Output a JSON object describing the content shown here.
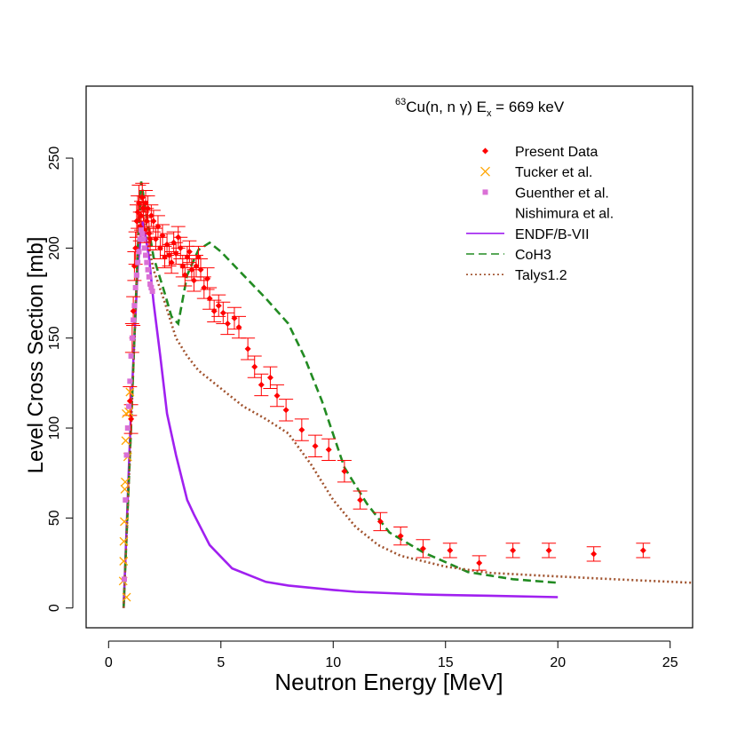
{
  "chart_data": {
    "type": "scatter",
    "title": {
      "superscript": "63",
      "main": "Cu(n, n γ) E",
      "subscript": "x",
      "suffix": " = 669 keV"
    },
    "xlabel": "Neutron Energy [MeV]",
    "ylabel": "Level Cross Section [mb]",
    "xlim": [
      -1.0,
      26.0
    ],
    "ylim": [
      -11.0,
      290.0
    ],
    "xticks": [
      0,
      5,
      10,
      15,
      20,
      25
    ],
    "yticks": [
      0,
      50,
      100,
      150,
      200,
      250
    ],
    "legend_position": "top-right",
    "grid": false,
    "colors": {
      "present": "#ff0000",
      "tucker": "#ffa500",
      "guenther": "#da70d6",
      "endf": "#a020f0",
      "coh3": "#228b22",
      "talys": "#a0522d"
    },
    "series": [
      {
        "name": "Present Data",
        "kind": "points",
        "marker": "diamond",
        "color_key": "present",
        "points": [
          [
            0.95,
            115,
            8
          ],
          [
            1.0,
            105,
            8
          ],
          [
            1.05,
            150,
            8
          ],
          [
            1.1,
            165,
            8
          ],
          [
            1.15,
            190,
            8
          ],
          [
            1.2,
            200,
            9
          ],
          [
            1.25,
            215,
            9
          ],
          [
            1.3,
            220,
            9
          ],
          [
            1.35,
            225,
            10
          ],
          [
            1.4,
            212,
            8
          ],
          [
            1.45,
            218,
            8
          ],
          [
            1.5,
            228,
            8
          ],
          [
            1.55,
            222,
            7
          ],
          [
            1.6,
            210,
            7
          ],
          [
            1.65,
            225,
            7
          ],
          [
            1.7,
            215,
            7
          ],
          [
            1.75,
            222,
            7
          ],
          [
            1.8,
            208,
            7
          ],
          [
            1.85,
            205,
            6
          ],
          [
            1.9,
            218,
            6
          ],
          [
            2.0,
            215,
            6
          ],
          [
            2.1,
            205,
            6
          ],
          [
            2.2,
            212,
            6
          ],
          [
            2.3,
            200,
            6
          ],
          [
            2.4,
            207,
            6
          ],
          [
            2.5,
            195,
            6
          ],
          [
            2.6,
            202,
            6
          ],
          [
            2.7,
            196,
            6
          ],
          [
            2.8,
            192,
            6
          ],
          [
            2.9,
            203,
            6
          ],
          [
            3.0,
            197,
            6
          ],
          [
            3.1,
            206,
            6
          ],
          [
            3.2,
            200,
            6
          ],
          [
            3.3,
            190,
            6
          ],
          [
            3.4,
            185,
            6
          ],
          [
            3.5,
            195,
            6
          ],
          [
            3.6,
            198,
            6
          ],
          [
            3.7,
            188,
            6
          ],
          [
            3.8,
            182,
            6
          ],
          [
            3.9,
            190,
            6
          ],
          [
            4.0,
            195,
            6
          ],
          [
            4.1,
            188,
            6
          ],
          [
            4.25,
            178,
            6
          ],
          [
            4.4,
            183,
            6
          ],
          [
            4.5,
            172,
            6
          ],
          [
            4.7,
            165,
            6
          ],
          [
            4.9,
            168,
            6
          ],
          [
            5.1,
            164,
            6
          ],
          [
            5.3,
            158,
            6
          ],
          [
            5.6,
            161,
            6
          ],
          [
            5.8,
            156,
            6
          ],
          [
            6.2,
            144,
            6
          ],
          [
            6.5,
            134,
            6
          ],
          [
            6.8,
            124,
            6
          ],
          [
            7.2,
            128,
            6
          ],
          [
            7.5,
            118,
            6
          ],
          [
            7.9,
            110,
            6
          ],
          [
            8.6,
            99,
            6
          ],
          [
            9.2,
            90,
            6
          ],
          [
            9.8,
            88,
            6
          ],
          [
            10.5,
            76,
            6
          ],
          [
            11.2,
            60,
            5
          ],
          [
            12.1,
            48,
            5
          ],
          [
            13.0,
            40,
            5
          ],
          [
            14.0,
            33,
            5
          ],
          [
            15.2,
            32,
            4
          ],
          [
            16.5,
            25,
            4
          ],
          [
            18.0,
            32,
            4
          ],
          [
            19.6,
            32,
            4
          ],
          [
            21.6,
            30,
            4
          ],
          [
            23.8,
            32,
            4
          ]
        ]
      },
      {
        "name": "Tucker et al.",
        "kind": "points",
        "marker": "x",
        "color_key": "tucker",
        "points": [
          [
            0.65,
            15
          ],
          [
            0.67,
            26
          ],
          [
            0.68,
            37
          ],
          [
            0.7,
            48
          ],
          [
            0.72,
            66
          ],
          [
            0.74,
            70
          ],
          [
            0.76,
            93
          ],
          [
            0.78,
            108
          ],
          [
            0.8,
            6
          ],
          [
            0.85,
            84
          ],
          [
            0.9,
            109
          ],
          [
            0.95,
            120
          ]
        ]
      },
      {
        "name": "Guenther et al.",
        "kind": "points",
        "marker": "square",
        "color_key": "guenther",
        "points": [
          [
            0.7,
            16
          ],
          [
            0.75,
            60
          ],
          [
            0.8,
            85
          ],
          [
            0.85,
            100
          ],
          [
            0.9,
            112
          ],
          [
            0.95,
            126
          ],
          [
            1.0,
            140
          ],
          [
            1.05,
            150
          ],
          [
            1.1,
            160
          ],
          [
            1.15,
            168
          ],
          [
            1.2,
            178
          ],
          [
            1.25,
            185
          ],
          [
            1.3,
            192
          ],
          [
            1.35,
            198
          ],
          [
            1.4,
            205
          ],
          [
            1.45,
            210
          ],
          [
            1.5,
            208
          ],
          [
            1.55,
            205
          ],
          [
            1.6,
            200
          ],
          [
            1.65,
            196
          ],
          [
            1.7,
            192
          ],
          [
            1.75,
            188
          ],
          [
            1.8,
            184
          ],
          [
            1.85,
            180
          ],
          [
            1.9,
            178
          ],
          [
            1.95,
            176
          ]
        ]
      },
      {
        "name": "Nishimura et al.",
        "kind": "points",
        "marker": "none",
        "color_key": "tucker",
        "points": []
      },
      {
        "name": "ENDF/B-VII",
        "kind": "line",
        "dash": "solid",
        "color_key": "endf",
        "points": [
          [
            0.67,
            0
          ],
          [
            1.0,
            110
          ],
          [
            1.3,
            190
          ],
          [
            1.5,
            215
          ],
          [
            1.6,
            210
          ],
          [
            1.8,
            195
          ],
          [
            2.0,
            170
          ],
          [
            2.3,
            140
          ],
          [
            2.6,
            108
          ],
          [
            3.0,
            85
          ],
          [
            3.5,
            60
          ],
          [
            3.8,
            52
          ],
          [
            4.5,
            35
          ],
          [
            5.5,
            22
          ],
          [
            7.0,
            14.5
          ],
          [
            8.0,
            12.5
          ],
          [
            10.0,
            10
          ],
          [
            11.0,
            9
          ],
          [
            13.0,
            8
          ],
          [
            14.0,
            7.5
          ],
          [
            15.0,
            7.2
          ],
          [
            17.0,
            6.8
          ],
          [
            20.0,
            6
          ]
        ]
      },
      {
        "name": "CoH3",
        "kind": "line",
        "dash": "dashed",
        "color_key": "coh3",
        "points": [
          [
            0.67,
            0
          ],
          [
            1.0,
            100
          ],
          [
            1.3,
            200
          ],
          [
            1.45,
            237
          ],
          [
            1.6,
            225
          ],
          [
            1.8,
            210
          ],
          [
            2.0,
            195
          ],
          [
            2.5,
            175
          ],
          [
            2.8,
            162
          ],
          [
            3.1,
            158
          ],
          [
            3.5,
            185
          ],
          [
            4.0,
            199
          ],
          [
            4.5,
            203
          ],
          [
            5.0,
            198
          ],
          [
            6.0,
            185
          ],
          [
            7.0,
            172
          ],
          [
            8.0,
            158
          ],
          [
            8.7,
            140
          ],
          [
            9.5,
            115
          ],
          [
            10.5,
            78
          ],
          [
            11.5,
            58
          ],
          [
            12.5,
            42
          ],
          [
            14.0,
            31
          ],
          [
            16.0,
            20
          ],
          [
            18.0,
            16
          ],
          [
            20.0,
            14
          ]
        ]
      },
      {
        "name": "Talys1.2",
        "kind": "line",
        "dash": "dotted",
        "color_key": "talys",
        "points": [
          [
            0.67,
            0
          ],
          [
            1.0,
            100
          ],
          [
            1.3,
            200
          ],
          [
            1.45,
            230
          ],
          [
            1.6,
            220
          ],
          [
            1.8,
            200
          ],
          [
            2.0,
            188
          ],
          [
            2.5,
            170
          ],
          [
            3.0,
            150
          ],
          [
            3.5,
            140
          ],
          [
            4.0,
            132
          ],
          [
            5.0,
            122
          ],
          [
            6.0,
            112
          ],
          [
            7.0,
            105
          ],
          [
            8.0,
            97
          ],
          [
            9.0,
            80
          ],
          [
            10.0,
            60
          ],
          [
            11.0,
            45
          ],
          [
            12.0,
            35
          ],
          [
            13.0,
            29
          ],
          [
            15.0,
            23
          ],
          [
            17.0,
            19.5
          ],
          [
            20.0,
            17.5
          ],
          [
            23.0,
            15.7
          ],
          [
            26.0,
            14
          ]
        ]
      }
    ]
  }
}
